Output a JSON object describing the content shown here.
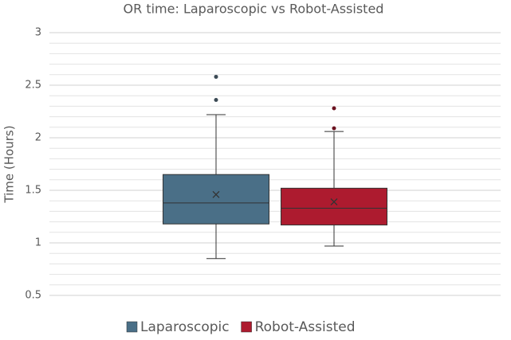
{
  "chart_data": {
    "type": "box",
    "title": "OR time: Laparoscopic vs Robot-Assisted",
    "y_label": "Time (Hours)",
    "ylim": [
      0.5,
      3
    ],
    "yticks": [
      0.5,
      1,
      1.5,
      2,
      2.5,
      3
    ],
    "grid": true,
    "minor_grid_step": 0.1,
    "legend": "bottom",
    "series": [
      {
        "name": "Laparoscopic",
        "color": "#4a6f87",
        "min": 0.85,
        "q1": 1.18,
        "median": 1.38,
        "q3": 1.65,
        "max": 2.22,
        "mean": 1.46,
        "outliers": [
          2.36,
          2.58
        ]
      },
      {
        "name": "Robot-Assisted",
        "color": "#ad1b2f",
        "min": 0.97,
        "q1": 1.17,
        "median": 1.33,
        "q3": 1.52,
        "max": 2.06,
        "mean": 1.39,
        "outliers": [
          2.09,
          2.28
        ]
      }
    ]
  }
}
